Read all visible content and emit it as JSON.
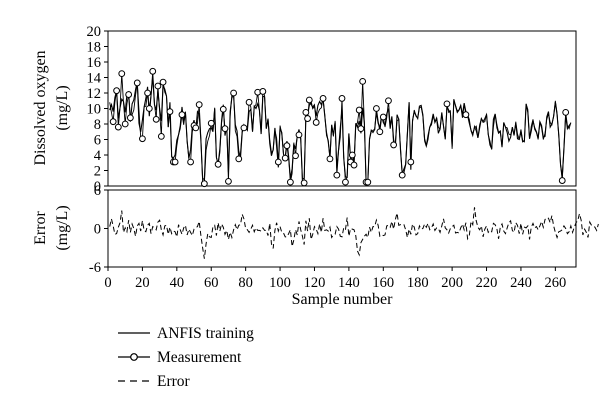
{
  "chart_data": [
    {
      "type": "line",
      "panel": "top",
      "ylabel_line1": "Dissolved oxygen",
      "ylabel_line2": "(mg/L)",
      "xlim": [
        0,
        272
      ],
      "ylim": [
        0,
        20
      ],
      "yticks": [
        0,
        2,
        4,
        6,
        8,
        10,
        12,
        14,
        16,
        18,
        20
      ],
      "grid": false,
      "series": [
        {
          "name": "ANFIS training",
          "style": "solid-line",
          "values": [
            9.8,
            10.5,
            9.6,
            11.4,
            12.3,
            8.7,
            10.1,
            11.2,
            10.9,
            9.5,
            11.8,
            12.1,
            8.3,
            10.6,
            11.1,
            12.4,
            13.5,
            8.1,
            7.0,
            8.5,
            10.2,
            11.3,
            12.8,
            9.0,
            11.7,
            14.1,
            10.5,
            9.8,
            12.2,
            10.0,
            8.4,
            13.0,
            12.5,
            11.6,
            7.6,
            10.8,
            3.8,
            3.6,
            4.0,
            5.9,
            6.6,
            7.8,
            10.2,
            8.2,
            9.5,
            5.8,
            3.6,
            4.7,
            7.7,
            8.5,
            7.1,
            9.6,
            9.3,
            5.8,
            1.0,
            0.8,
            6.1,
            6.9,
            7.4,
            7.5,
            7.0,
            10.0,
            3.7,
            2.8,
            4.8,
            8.4,
            10.5,
            6.5,
            7.7,
            1.8,
            9.6,
            11.4,
            11.7,
            7.9,
            7.1,
            4.5,
            3.6,
            6.9,
            7.9,
            7.6,
            7.2,
            9.6,
            9.9,
            7.0,
            10.3,
            10.0,
            10.6,
            9.8,
            6.7,
            11.6,
            11.5,
            7.4,
            8.6,
            5.5,
            3.9,
            4.7,
            7.5,
            5.1,
            2.4,
            7.5,
            6.9,
            4.1,
            3.7,
            5.8,
            3.8,
            1.0,
            2.2,
            5.4,
            4.8,
            6.4,
            7.3,
            6.1,
            0.9,
            1.0,
            8.7,
            9.1,
            10.4,
            10.9,
            10.0,
            10.3,
            9.0,
            10.4,
            10.9,
            10.5,
            11.2,
            9.0,
            6.9,
            5.7,
            3.7,
            7.9,
            6.6,
            8.2,
            2.3,
            4.7,
            7.5,
            9.9,
            3.6,
            1.2,
            1.1,
            6.7,
            3.6,
            4.4,
            3.0,
            8.1,
            7.6,
            8.4,
            6.8,
            10.1,
            8.1,
            0.5,
            0.4,
            6.1,
            7.2,
            6.9,
            7.3,
            9.5,
            8.1,
            7.5,
            9.1,
            8.2,
            7.8,
            9.3,
            10.0,
            7.4,
            8.9,
            6.0,
            5.0,
            9.2,
            8.6,
            4.6,
            1.6,
            2.2,
            2.8,
            6.6,
            10.8,
            2.1,
            8.5,
            9.6,
            9.1,
            8.7,
            10.3,
            10.4,
            9.2,
            6.1,
            5.2,
            6.5,
            7.6,
            8.2,
            9.3,
            8.2,
            8.7,
            6.8,
            7.4,
            9.5,
            7.7,
            6.1,
            10.2,
            9.8,
            9.4,
            5.1,
            11.2,
            10.3,
            9.5,
            9.8,
            10.4,
            9.2,
            10.7,
            9.6,
            9.1,
            8.1,
            7.2,
            6.7,
            7.5,
            7.7,
            6.2,
            7.5,
            8.7,
            8.3,
            8.7,
            9.2,
            6.7,
            5.3,
            4.8,
            8.6,
            9.3,
            7.9,
            6.9,
            7.1,
            5.0,
            8.2,
            7.6,
            6.9,
            5.8,
            6.3,
            7.6,
            6.6,
            8.1,
            6.1,
            6.0,
            7.0,
            5.7,
            5.8,
            10.6,
            9.5,
            6.1,
            7.1,
            8.4,
            7.5,
            7.0,
            6.2,
            8.3,
            7.8,
            6.3,
            6.4,
            8.9,
            9.6,
            7.6,
            8.0,
            9.0,
            10.8,
            9.2,
            6.6,
            2.8,
            1.2,
            4.8,
            9.1,
            7.4,
            7.8,
            8.1
          ]
        },
        {
          "name": "Measurement",
          "style": "line-with-circles",
          "values": [
            10.8,
            9.5,
            8.3,
            10.8,
            12.3,
            7.6,
            10.1,
            14.5,
            10.7,
            8.0,
            10.6,
            11.8,
            8.8,
            9.2,
            9.8,
            11.7,
            13.3,
            9.8,
            6.3,
            6.1,
            10.2,
            10.3,
            12.0,
            10.0,
            11.6,
            14.8,
            10.6,
            8.6,
            12.9,
            9.6,
            6.4,
            13.4,
            12.1,
            11.6,
            7.6,
            9.6,
            3.8,
            3.1,
            3.1,
            5.2,
            6.6,
            7.4,
            9.2,
            7.9,
            9.6,
            5.7,
            3.5,
            3.1,
            7.0,
            7.8,
            7.5,
            8.1,
            10.5,
            6.1,
            0.5,
            0.3,
            4.6,
            5.8,
            6.5,
            8.1,
            7.1,
            10.1,
            3.7,
            2.8,
            4.3,
            8.1,
            9.9,
            7.4,
            7.6,
            0.6,
            9.0,
            11.8,
            12.0,
            7.1,
            6.4,
            3.5,
            4.2,
            7.2,
            7.5,
            7.3,
            7.6,
            10.8,
            10.2,
            7.0,
            10.2,
            10.5,
            12.1,
            9.8,
            6.9,
            12.2,
            11.7,
            7.4,
            8.7,
            6.0,
            4.3,
            4.6,
            7.2,
            6.2,
            3.1,
            7.8,
            6.7,
            4.1,
            3.6,
            5.2,
            3.5,
            0.5,
            1.6,
            5.6,
            3.9,
            6.6,
            6.6,
            6.2,
            0.5,
            0.4,
            9.5,
            8.7,
            11.1,
            10.5,
            10.2,
            10.5,
            8.2,
            9.4,
            9.9,
            10.1,
            11.3,
            9.2,
            6.5,
            5.9,
            3.5,
            7.8,
            6.4,
            8.4,
            1.4,
            4.5,
            6.3,
            11.3,
            3.9,
            0.5,
            1.3,
            6.8,
            3.1,
            4.0,
            2.7,
            7.7,
            8.2,
            9.8,
            7.4,
            13.5,
            8.1,
            0.5,
            0.5,
            6.0,
            7.0,
            7.2,
            7.3,
            10.0,
            8.4,
            7.0,
            8.8,
            8.9,
            7.6,
            8.8,
            11.0,
            7.8,
            9.0,
            5.3,
            5.6,
            8.4,
            8.6,
            5.0,
            1.4,
            1.7,
            2.7,
            7.0,
            10.8,
            3.1,
            8.3,
            9.8,
            9.0,
            8.8,
            10.1,
            10.2,
            9.0,
            5.8,
            5.1,
            6.0,
            7.6,
            7.9,
            9.0,
            8.3,
            8.8,
            7.6,
            7.3,
            9.2,
            7.8,
            6.0,
            10.6,
            9.5,
            9.7,
            4.8,
            11.0,
            10.4,
            9.7,
            9.8,
            10.4,
            8.8,
            10.5,
            9.2,
            9.2,
            8.6,
            7.1,
            6.5,
            7.7,
            7.1,
            6.2,
            7.9,
            8.7,
            8.2,
            8.3,
            9.3,
            6.6,
            5.8,
            4.7,
            7.6,
            9.3,
            7.5,
            6.8,
            7.0,
            5.1,
            8.1,
            7.6,
            7.5,
            6.7,
            6.6,
            7.5,
            6.5,
            8.3,
            6.7,
            6.0,
            7.3,
            5.9,
            5.7,
            10.6,
            9.9,
            6.1,
            7.7,
            8.6,
            7.3,
            6.9,
            6.0,
            8.2,
            7.5,
            6.0,
            6.8,
            8.6,
            9.3,
            8.2,
            7.9,
            9.0,
            11.0,
            9.4,
            6.4,
            2.8,
            0.7,
            5.1,
            9.5,
            7.8,
            7.4,
            8.2
          ]
        }
      ]
    },
    {
      "type": "line",
      "panel": "bottom",
      "ylabel_line1": "Error",
      "ylabel_line2": "(mg/L)",
      "xlabel": "Sample number",
      "xlim": [
        0,
        272
      ],
      "ylim": [
        -6,
        6
      ],
      "yticks": [
        -6,
        0,
        6
      ],
      "xticks": [
        0,
        20,
        40,
        60,
        80,
        100,
        120,
        140,
        160,
        180,
        200,
        220,
        240,
        260
      ],
      "grid": false,
      "series": [
        {
          "name": "Error",
          "style": "dashed-line",
          "values": [
            0.3,
            1.5,
            0.4,
            -0.9,
            -0.8,
            0.2,
            0.9,
            2.8,
            -0.6,
            0.1,
            -0.5,
            1.3,
            -0.6,
            0.7,
            0.0,
            -1.2,
            0.4,
            0.8,
            -0.4,
            1.2,
            -0.3,
            -0.5,
            0.5,
            0.8,
            -0.8,
            0.3,
            0.1,
            -0.2,
            1.0,
            1.3,
            -0.2,
            -1.0,
            0.4,
            0.5,
            -0.9,
            0.2,
            -0.8,
            -0.4,
            -0.5,
            -1.3,
            0.6,
            -0.2,
            -0.9,
            0.1,
            0.5,
            -1.0,
            -0.1,
            -0.6,
            -1.1,
            -0.1,
            0.1,
            0.3,
            1.1,
            -1.1,
            -3.0,
            -4.7,
            -2.4,
            -0.8,
            -1.3,
            -1.4,
            0.3,
            0.5,
            -1.1,
            0.9,
            -0.4,
            0.7,
            0.2,
            -0.9,
            -0.3,
            -1.7,
            -0.6,
            -1.4,
            -0.2,
            0.6,
            -0.2,
            0.5,
            0.6,
            2.2,
            1.5,
            0.0,
            -0.2,
            -0.6,
            -0.1,
            0.5,
            -0.5,
            0.1,
            -0.3,
            -0.3,
            -0.4,
            0.1,
            -0.3,
            -0.3,
            -1.1,
            0.8,
            -2.4,
            -3.1,
            -0.3,
            0.9,
            -0.4,
            0.3,
            -0.6,
            -0.7,
            -1.3,
            -1.3,
            -0.8,
            -0.2,
            -2.8,
            -1.8,
            -0.2,
            -1.0,
            1.1,
            -0.2,
            -1.2,
            -2.5,
            1.2,
            -0.4,
            1.6,
            -1.7,
            -0.9,
            0.3,
            -0.1,
            -0.8,
            0.7,
            -0.6,
            1.6,
            -0.3,
            -0.2,
            -0.4,
            0.2,
            -1.4,
            -1.0,
            -0.9,
            0.3,
            -0.1,
            -1.2,
            -1.3,
            0.1,
            -0.2,
            1.7,
            -1.2,
            0.0,
            -0.1,
            -0.2,
            -1.1,
            -3.5,
            -4.1,
            -2.2,
            -1.7,
            -1.2,
            -0.9,
            -1.4,
            0.2,
            -0.6,
            0.3,
            0.3,
            1.3,
            0.5,
            -1.2,
            -1.0,
            -1.1,
            -1.0,
            0.4,
            0.5,
            0.2,
            1.1,
            -0.1,
            1.4,
            2.4,
            0.5,
            0.6,
            0.7,
            0.6,
            -0.2,
            -1.4,
            -0.1,
            -0.9,
            0.7,
            0.2,
            -1.0,
            -0.8,
            0.4,
            -0.1,
            0.0,
            0.7,
            0.2,
            0.8,
            -0.2,
            0.1,
            0.7,
            -0.3,
            0.1,
            0.0,
            -0.6,
            0.4,
            1.5,
            0.1,
            -0.2,
            -0.7,
            0.0,
            0.3,
            0.5,
            -0.7,
            -0.6,
            -0.7,
            0.1,
            0.7,
            -0.2,
            0.9,
            -1.6,
            -1.1,
            1.1,
            0.6,
            3.3,
            1.2,
            0.2,
            -0.2,
            0.4,
            -1.3,
            -0.1,
            0.4,
            -0.6,
            -0.3,
            -0.5,
            0.8,
            0.6,
            0.0,
            -1.6,
            0.2,
            0.7,
            -0.4,
            -0.8,
            0.1,
            0.9,
            1.2,
            -0.3,
            -0.6,
            0.9,
            0.5,
            -0.8,
            0.8,
            -0.9,
            0.2,
            0.1,
            0.4,
            -1.7,
            0.2,
            0.8,
            0.1,
            0.3,
            -0.2,
            0.4,
            1.1,
            0.2,
            1.4,
            1.7,
            1.6,
            0.9,
            2.0,
            0.4,
            -0.6,
            -1.4,
            -0.5,
            -0.4,
            -0.2,
            0.4,
            0.0,
            -0.8,
            -0.5,
            0.4,
            -0.6,
            0.2,
            0.9,
            1.2,
            2.3,
            1.3,
            -1.0,
            -0.1,
            -0.6,
            -1.4,
            1.0,
            0.5,
            0.4,
            0.2,
            -0.3,
            0.7
          ]
        }
      ]
    }
  ],
  "legend": {
    "placement": "below-chart",
    "items": [
      {
        "label": "ANFIS training",
        "style": "solid"
      },
      {
        "label": "Measurement",
        "style": "circle-marker"
      },
      {
        "label": "Error",
        "style": "dashed"
      }
    ]
  },
  "colors": {
    "ink": "#000000",
    "background": "#ffffff"
  }
}
